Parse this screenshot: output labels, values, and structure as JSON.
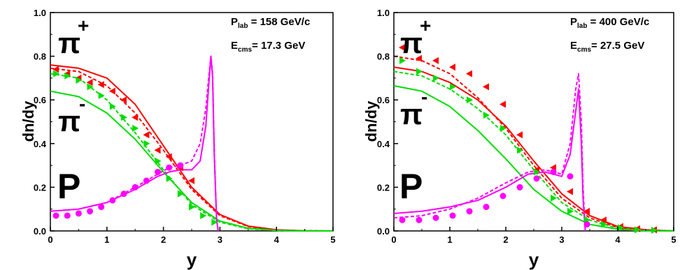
{
  "chart_data": [
    {
      "type": "line",
      "xlabel": "y",
      "ylabel": "dn/dy",
      "xlim": [
        0,
        5
      ],
      "ylim": [
        0,
        1.0
      ],
      "x_ticks": [
        "0",
        "1",
        "2",
        "3",
        "4",
        "5"
      ],
      "y_ticks": [
        "0.0",
        "0.2",
        "0.4",
        "0.6",
        "0.8",
        "1.0"
      ],
      "grid": false,
      "annotations": {
        "plab_main": "P",
        "plab_sub": "lab",
        "plab_rest": " = 158 GeV/c",
        "ecms_main": "E",
        "ecms_sub": "cms",
        "ecms_rest": "= 17.3 GeV"
      },
      "particle_labels": {
        "pi_plus": "π",
        "pi_plus_sup": "+",
        "pi_minus": "π",
        "pi_minus_sup": "-",
        "proton": "P"
      },
      "colors": {
        "pi_plus": "#ff0000",
        "pi_minus": "#00dd00",
        "proton": "#ff00ff"
      },
      "series": [
        {
          "particle": "pi_plus",
          "style": "solid",
          "x": [
            0,
            0.5,
            1,
            1.5,
            2,
            2.5,
            3,
            3.5,
            4,
            4.5,
            5
          ],
          "y": [
            0.76,
            0.745,
            0.7,
            0.58,
            0.39,
            0.2,
            0.075,
            0.022,
            0.005,
            0.001,
            0.0
          ]
        },
        {
          "particle": "pi_plus",
          "style": "dashed",
          "x": [
            0,
            0.5,
            1,
            1.5,
            2,
            2.5,
            3,
            3.5,
            4,
            4.5,
            5
          ],
          "y": [
            0.745,
            0.73,
            0.665,
            0.54,
            0.37,
            0.19,
            0.07,
            0.02,
            0.004,
            0.001,
            0.0
          ]
        },
        {
          "particle": "pi_minus",
          "style": "solid",
          "x": [
            0,
            0.5,
            1,
            1.5,
            2,
            2.5,
            3,
            3.5,
            4,
            4.5,
            5
          ],
          "y": [
            0.64,
            0.615,
            0.54,
            0.42,
            0.27,
            0.13,
            0.045,
            0.012,
            0.003,
            0.0,
            0.0
          ]
        },
        {
          "particle": "pi_minus",
          "style": "dashed",
          "x": [
            0,
            0.5,
            1,
            1.5,
            2,
            2.5,
            3,
            3.5,
            4,
            4.5,
            5
          ],
          "y": [
            0.72,
            0.7,
            0.6,
            0.45,
            0.28,
            0.12,
            0.04,
            0.01,
            0.002,
            0.0,
            0.0
          ]
        },
        {
          "particle": "proton",
          "style": "solid",
          "x": [
            0,
            0.5,
            1,
            1.5,
            1.9,
            2.1,
            2.3,
            2.5,
            2.65,
            2.75,
            2.8,
            2.84,
            2.87,
            2.9,
            2.94,
            2.97
          ],
          "y": [
            0.09,
            0.1,
            0.13,
            0.19,
            0.25,
            0.27,
            0.28,
            0.28,
            0.32,
            0.48,
            0.66,
            0.8,
            0.7,
            0.35,
            0.05,
            0.0
          ]
        },
        {
          "particle": "proton",
          "style": "dashed",
          "x": [
            0,
            0.5,
            1,
            1.5,
            1.9,
            2.1,
            2.3,
            2.5,
            2.65,
            2.75,
            2.8,
            2.84,
            2.87,
            2.9,
            2.94,
            2.97
          ],
          "y": [
            0.09,
            0.1,
            0.13,
            0.2,
            0.26,
            0.29,
            0.3,
            0.32,
            0.4,
            0.56,
            0.7,
            0.8,
            0.72,
            0.36,
            0.05,
            0.0
          ]
        }
      ],
      "markers": [
        {
          "particle": "pi_plus",
          "shape": "triangle-left",
          "x": [
            0.1,
            0.3,
            0.5,
            0.7,
            0.9,
            1.1,
            1.3,
            1.5,
            1.7,
            1.9,
            2.1,
            2.3,
            2.5
          ],
          "y": [
            0.74,
            0.72,
            0.7,
            0.68,
            0.67,
            0.64,
            0.6,
            0.52,
            0.44,
            0.37,
            0.34,
            0.29,
            0.23
          ]
        },
        {
          "particle": "pi_minus",
          "shape": "triangle-right",
          "x": [
            0.1,
            0.3,
            0.5,
            0.7,
            0.9,
            1.1,
            1.3,
            1.5,
            1.7,
            1.9,
            2.1,
            2.3,
            2.5,
            2.7,
            2.9
          ],
          "y": [
            0.72,
            0.71,
            0.69,
            0.66,
            0.62,
            0.57,
            0.52,
            0.47,
            0.4,
            0.32,
            0.24,
            0.17,
            0.11,
            0.07,
            0.04
          ]
        },
        {
          "particle": "proton",
          "shape": "circle",
          "x": [
            0.1,
            0.3,
            0.5,
            0.7,
            0.9,
            1.1,
            1.3,
            1.5,
            1.7,
            1.9,
            2.1,
            2.3
          ],
          "y": [
            0.07,
            0.07,
            0.08,
            0.09,
            0.11,
            0.14,
            0.17,
            0.2,
            0.23,
            0.27,
            0.29,
            0.3
          ]
        }
      ]
    },
    {
      "type": "line",
      "xlabel": "y",
      "ylabel": "dn/dy",
      "xlim": [
        0,
        5
      ],
      "ylim": [
        0,
        1.0
      ],
      "x_ticks": [
        "0",
        "1",
        "2",
        "3",
        "4",
        "5"
      ],
      "y_ticks": [
        "0.0",
        "0.2",
        "0.4",
        "0.6",
        "0.8",
        "1.0"
      ],
      "grid": false,
      "annotations": {
        "plab_main": "P",
        "plab_sub": "lab",
        "plab_rest": " = 400 GeV/c",
        "ecms_main": "E",
        "ecms_sub": "cms",
        "ecms_rest": "= 27.5 GeV"
      },
      "particle_labels": {
        "pi_plus": "π",
        "pi_plus_sup": "+",
        "pi_minus": "π",
        "pi_minus_sup": "-",
        "proton": "P"
      },
      "colors": {
        "pi_plus": "#ff0000",
        "pi_minus": "#00dd00",
        "proton": "#ff00ff"
      },
      "series": [
        {
          "particle": "pi_plus",
          "style": "solid",
          "x": [
            0,
            0.5,
            1,
            1.5,
            2,
            2.5,
            3,
            3.5,
            4,
            4.5,
            5
          ],
          "y": [
            0.75,
            0.73,
            0.68,
            0.6,
            0.48,
            0.32,
            0.17,
            0.07,
            0.02,
            0.005,
            0.0
          ]
        },
        {
          "particle": "pi_plus",
          "style": "dashed",
          "x": [
            0,
            0.5,
            1,
            1.5,
            2,
            2.5,
            3,
            3.5,
            4,
            4.5,
            5
          ],
          "y": [
            0.8,
            0.78,
            0.72,
            0.61,
            0.47,
            0.3,
            0.15,
            0.06,
            0.015,
            0.003,
            0.0
          ]
        },
        {
          "particle": "pi_minus",
          "style": "solid",
          "x": [
            0,
            0.5,
            1,
            1.5,
            2,
            2.5,
            3,
            3.5,
            4,
            4.5,
            5
          ],
          "y": [
            0.665,
            0.64,
            0.57,
            0.46,
            0.33,
            0.19,
            0.09,
            0.03,
            0.008,
            0.001,
            0.0
          ]
        },
        {
          "particle": "pi_minus",
          "style": "dashed",
          "x": [
            0,
            0.5,
            1,
            1.5,
            2,
            2.5,
            3,
            3.5,
            4,
            4.5,
            5
          ],
          "y": [
            0.73,
            0.71,
            0.65,
            0.56,
            0.44,
            0.28,
            0.13,
            0.05,
            0.012,
            0.002,
            0.0
          ]
        },
        {
          "particle": "proton",
          "style": "solid",
          "x": [
            0,
            0.5,
            1,
            1.5,
            2,
            2.4,
            2.7,
            3.0,
            3.15,
            3.25,
            3.3,
            3.35,
            3.38,
            3.42
          ],
          "y": [
            0.08,
            0.09,
            0.11,
            0.14,
            0.2,
            0.26,
            0.27,
            0.25,
            0.35,
            0.55,
            0.65,
            0.4,
            0.15,
            0.0
          ]
        },
        {
          "particle": "proton",
          "style": "dashed",
          "x": [
            0,
            0.5,
            1,
            1.5,
            2,
            2.4,
            2.7,
            3.0,
            3.15,
            3.25,
            3.3,
            3.35,
            3.38,
            3.42
          ],
          "y": [
            0.06,
            0.07,
            0.1,
            0.15,
            0.22,
            0.27,
            0.28,
            0.26,
            0.4,
            0.65,
            0.72,
            0.5,
            0.2,
            0.0
          ]
        }
      ],
      "markers": [
        {
          "particle": "pi_plus",
          "shape": "triangle-left",
          "x": [
            0.15,
            0.45,
            0.75,
            1.05,
            1.35,
            1.65,
            1.95,
            2.25,
            2.55,
            2.85,
            3.15,
            3.45,
            3.75,
            4.05,
            4.35,
            4.65
          ],
          "y": [
            0.84,
            0.79,
            0.78,
            0.75,
            0.72,
            0.66,
            0.58,
            0.44,
            0.28,
            0.29,
            0.18,
            0.09,
            0.05,
            0.02,
            0.01,
            0.005
          ]
        },
        {
          "particle": "pi_minus",
          "shape": "triangle-right",
          "x": [
            0.15,
            0.45,
            0.75,
            1.05,
            1.35,
            1.65,
            1.95,
            2.25,
            2.55,
            2.85,
            3.15,
            3.45,
            3.75,
            4.05,
            4.35,
            4.65
          ],
          "y": [
            0.78,
            0.73,
            0.7,
            0.66,
            0.6,
            0.53,
            0.47,
            0.37,
            0.27,
            0.15,
            0.09,
            0.05,
            0.03,
            0.015,
            0.005,
            0.003
          ]
        },
        {
          "particle": "proton",
          "shape": "circle",
          "x": [
            0.15,
            0.45,
            0.75,
            1.05,
            1.35,
            1.65,
            1.95,
            2.25,
            2.55,
            2.85,
            3.15,
            3.45
          ],
          "y": [
            0.05,
            0.05,
            0.06,
            0.07,
            0.09,
            0.11,
            0.16,
            0.2,
            0.24,
            0.27,
            0.25,
            0.03
          ]
        }
      ]
    }
  ]
}
